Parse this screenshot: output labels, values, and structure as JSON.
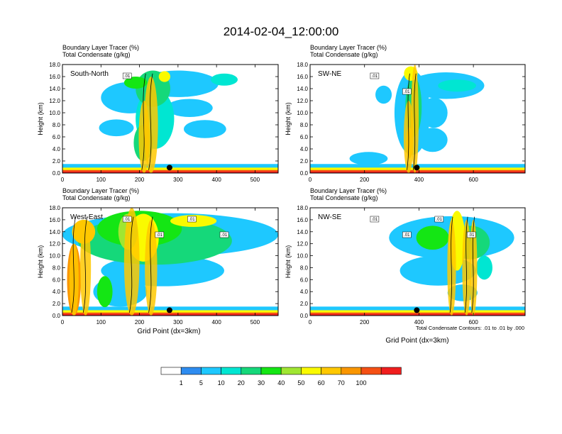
{
  "figure": {
    "title": "2014-02-04_12:00:00",
    "x_axis_label": "Grid Point (dx=3km)",
    "contour_note": "Total Condensate Contours: .01 to .01 by .000"
  },
  "colorbar": {
    "labels": [
      "1",
      "5",
      "10",
      "20",
      "30",
      "40",
      "50",
      "60",
      "70",
      "100"
    ],
    "colors": [
      "#ffffff",
      "#2e8cf0",
      "#1ec8ff",
      "#00e6d2",
      "#15d87a",
      "#14e614",
      "#a0e632",
      "#fafa00",
      "#ffc800",
      "#fa9600",
      "#f55014",
      "#f01e1e"
    ]
  },
  "chart_data": [
    {
      "type": "heatmap",
      "panel": "South-North",
      "label_line1": "Boundary Layer Tracer   (%)",
      "label_line2": "Total Condensate   (g/kg)",
      "ylabel": "Height (km)",
      "ylim": [
        0,
        18
      ],
      "xlim": [
        0,
        560
      ],
      "xticks": [
        "0",
        "100",
        "200",
        "300",
        "400",
        "500"
      ],
      "yticks": [
        "0.0",
        "2.0",
        "4.0",
        "6.0",
        "8.0",
        "10.0",
        "12.0",
        "14.0",
        "16.0",
        "18.0"
      ],
      "marker_x": 278,
      "contour_labels": [
        ".01"
      ]
    },
    {
      "type": "heatmap",
      "panel": "SW-NE",
      "label_line1": "Boundary Layer Tracer   (%)",
      "label_line2": "Total Condensate   (g/kg)",
      "ylabel": "Height (km)",
      "ylim": [
        0,
        18
      ],
      "xlim": [
        0,
        790
      ],
      "xticks": [
        "0",
        "200",
        "400",
        "600"
      ],
      "yticks": [
        "0.0",
        "2.0",
        "4.0",
        "6.0",
        "8.0",
        "10.0",
        "12.0",
        "14.0",
        "16.0",
        "18.0"
      ],
      "marker_x": 392,
      "contour_labels": [
        ".01",
        ".01"
      ]
    },
    {
      "type": "heatmap",
      "panel": "West-East",
      "label_line1": "Boundary Layer Tracer   (%)",
      "label_line2": "Total Condensate   (g/kg)",
      "ylabel": "Height (km)",
      "ylim": [
        0,
        18
      ],
      "xlim": [
        0,
        560
      ],
      "xticks": [
        "0",
        "100",
        "200",
        "300",
        "400",
        "500"
      ],
      "yticks": [
        "0.0",
        "2.0",
        "4.0",
        "6.0",
        "8.0",
        "10.0",
        "12.0",
        "14.0",
        "16.0",
        "18.0"
      ],
      "marker_x": 278,
      "contour_labels": [
        ".01",
        ".01",
        ".01",
        ".01"
      ]
    },
    {
      "type": "heatmap",
      "panel": "NW-SE",
      "label_line1": "Boundary Layer Tracer   (%)",
      "label_line2": "Total Condensate   (g/kg)",
      "ylabel": "Height (km)",
      "ylim": [
        0,
        18
      ],
      "xlim": [
        0,
        790
      ],
      "xticks": [
        "0",
        "200",
        "400",
        "600"
      ],
      "yticks": [
        "0.0",
        "2.0",
        "4.0",
        "6.0",
        "8.0",
        "10.0",
        "12.0",
        "14.0",
        "16.0",
        "18.0"
      ],
      "marker_x": 392,
      "contour_labels": [
        ".01",
        ".01",
        ".01",
        ".01"
      ]
    }
  ]
}
